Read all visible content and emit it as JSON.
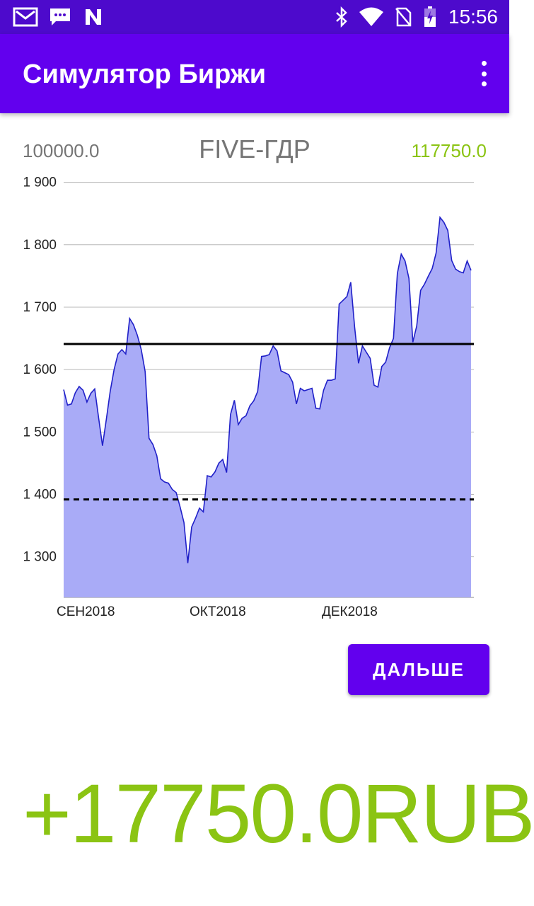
{
  "status_bar": {
    "time": "15:56",
    "icons": [
      "gmail-icon",
      "message-icon",
      "n-notification-icon",
      "bluetooth-icon",
      "wifi-icon",
      "no-sim-icon",
      "battery-charging-icon"
    ]
  },
  "app_bar": {
    "title": "Симулятор Биржи",
    "menu_icon": "overflow-menu-icon"
  },
  "info": {
    "start_value": "100000.0",
    "ticker": "FIVE-ГДР",
    "current_value": "117750.0"
  },
  "chart_data": {
    "type": "area",
    "ylim": [
      1235,
      1920
    ],
    "y_ticks": [
      1300,
      1400,
      1500,
      1600,
      1700,
      1800,
      1900
    ],
    "y_tick_labels": [
      "1 300",
      "1 400",
      "1 500",
      "1 600",
      "1 700",
      "1 800",
      "1 900"
    ],
    "x_tick_labels": [
      "СЕН2018",
      "ОКТ2018",
      "ДЕК2018"
    ],
    "grid": true,
    "fill_color": "#a9abf7",
    "line_color": "#2020c8",
    "reference_lines": [
      {
        "style": "solid",
        "value": 1641
      },
      {
        "style": "dashed",
        "value": 1392
      }
    ],
    "values": [
      1568,
      1543,
      1545,
      1563,
      1573,
      1567,
      1548,
      1562,
      1569,
      1523,
      1478,
      1520,
      1565,
      1600,
      1625,
      1632,
      1625,
      1682,
      1672,
      1655,
      1632,
      1597,
      1490,
      1480,
      1462,
      1425,
      1420,
      1418,
      1408,
      1403,
      1380,
      1355,
      1290,
      1348,
      1362,
      1378,
      1372,
      1430,
      1428,
      1436,
      1450,
      1456,
      1435,
      1528,
      1551,
      1512,
      1522,
      1526,
      1542,
      1550,
      1565,
      1621,
      1622,
      1624,
      1638,
      1630,
      1598,
      1595,
      1592,
      1580,
      1545,
      1570,
      1566,
      1568,
      1570,
      1538,
      1537,
      1567,
      1583,
      1583,
      1585,
      1705,
      1711,
      1717,
      1740,
      1668,
      1610,
      1638,
      1628,
      1618,
      1575,
      1572,
      1605,
      1612,
      1635,
      1650,
      1754,
      1785,
      1774,
      1746,
      1644,
      1670,
      1727,
      1737,
      1750,
      1762,
      1787,
      1844,
      1836,
      1823,
      1775,
      1761,
      1757,
      1755,
      1774,
      1759
    ]
  },
  "actions": {
    "next_label": "ДАЛЬШЕ"
  },
  "result": {
    "profit_text": "+17750.0RUB"
  }
}
